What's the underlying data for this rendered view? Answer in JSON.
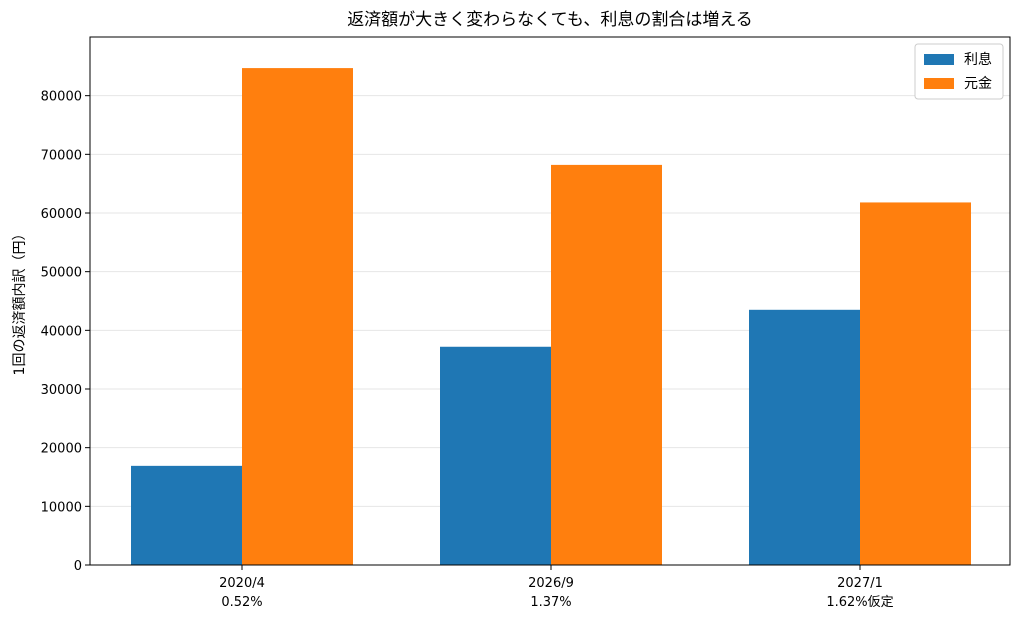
{
  "chart_data": {
    "type": "bar",
    "title": "返済額が大きく変わらなくても、利息の割合は増える",
    "xlabel": "",
    "ylabel": "1回の返済額内訳（円）",
    "categories": [
      {
        "date": "2020/4",
        "rate": "0.52%"
      },
      {
        "date": "2026/9",
        "rate": "1.37%"
      },
      {
        "date": "2027/1",
        "rate": "1.62%仮定"
      }
    ],
    "series": [
      {
        "name": "利息",
        "color": "#1f77b4",
        "values": [
          16900,
          37200,
          43500
        ]
      },
      {
        "name": "元金",
        "color": "#ff7f0e",
        "values": [
          84700,
          68200,
          61800
        ]
      }
    ],
    "ylim": [
      0,
      90000
    ],
    "yticks": [
      0,
      10000,
      20000,
      30000,
      40000,
      50000,
      60000,
      70000,
      80000
    ],
    "grid": "y",
    "legend": "top-right"
  }
}
